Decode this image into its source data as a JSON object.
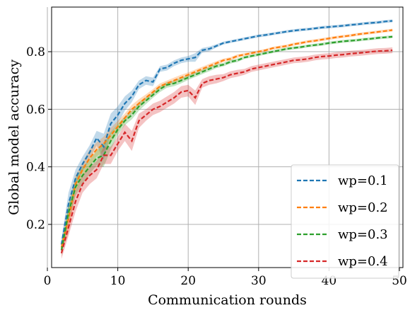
{
  "chart_data": {
    "type": "line",
    "title": "",
    "xlabel": "Communication rounds",
    "ylabel": "Global model accuracy",
    "xlim": [
      0.6,
      50.5
    ],
    "ylim": [
      0.05,
      0.955
    ],
    "xticks": [
      0,
      10,
      20,
      30,
      40,
      50
    ],
    "yticks": [
      0.2,
      0.4,
      0.6,
      0.8
    ],
    "xtick_labels": [
      "0",
      "10",
      "20",
      "30",
      "40",
      "50"
    ],
    "ytick_labels": [
      "0.2",
      "0.4",
      "0.6",
      "0.8"
    ],
    "grid": true,
    "legend_position": "lower-right",
    "line_style": "dashed",
    "band": "shaded spread around each line",
    "x": [
      2,
      3,
      4,
      5,
      6,
      7,
      8,
      9,
      10,
      11,
      12,
      13,
      14,
      15,
      16,
      17,
      18,
      19,
      20,
      21,
      22,
      23,
      24,
      25,
      26,
      27,
      28,
      29,
      30,
      31,
      32,
      33,
      34,
      35,
      36,
      37,
      38,
      39,
      40,
      41,
      42,
      43,
      44,
      45,
      46,
      47,
      48,
      49
    ],
    "series": [
      {
        "name": "wp=0.1",
        "color": "#1f77b4",
        "values": [
          0.13,
          0.27,
          0.36,
          0.41,
          0.45,
          0.5,
          0.47,
          0.55,
          0.58,
          0.62,
          0.645,
          0.685,
          0.7,
          0.695,
          0.74,
          0.745,
          0.76,
          0.77,
          0.775,
          0.78,
          0.805,
          0.81,
          0.82,
          0.83,
          0.835,
          0.84,
          0.845,
          0.85,
          0.855,
          0.858,
          0.862,
          0.866,
          0.87,
          0.873,
          0.876,
          0.878,
          0.881,
          0.884,
          0.886,
          0.888,
          0.89,
          0.893,
          0.895,
          0.898,
          0.9,
          0.902,
          0.905,
          0.907
        ],
        "band": [
          0.02,
          0.04,
          0.03,
          0.025,
          0.025,
          0.025,
          0.045,
          0.035,
          0.03,
          0.025,
          0.02,
          0.015,
          0.015,
          0.015,
          0.01,
          0.01,
          0.01,
          0.01,
          0.01,
          0.015,
          0.008,
          0.008,
          0.006,
          0.005,
          0.005,
          0.005,
          0.005,
          0.005,
          0.005,
          0.005,
          0.005,
          0.005,
          0.005,
          0.005,
          0.005,
          0.005,
          0.005,
          0.005,
          0.005,
          0.005,
          0.005,
          0.005,
          0.005,
          0.005,
          0.005,
          0.005,
          0.005,
          0.005
        ]
      },
      {
        "name": "wp=0.2",
        "color": "#ff7f0e",
        "values": [
          0.12,
          0.22,
          0.34,
          0.39,
          0.43,
          0.46,
          0.48,
          0.51,
          0.54,
          0.57,
          0.6,
          0.62,
          0.64,
          0.66,
          0.68,
          0.69,
          0.7,
          0.71,
          0.72,
          0.73,
          0.74,
          0.75,
          0.76,
          0.77,
          0.775,
          0.785,
          0.79,
          0.795,
          0.8,
          0.805,
          0.812,
          0.816,
          0.82,
          0.826,
          0.83,
          0.835,
          0.838,
          0.842,
          0.846,
          0.85,
          0.853,
          0.856,
          0.86,
          0.863,
          0.866,
          0.869,
          0.872,
          0.875
        ],
        "band": [
          0.02,
          0.05,
          0.03,
          0.025,
          0.03,
          0.025,
          0.025,
          0.025,
          0.02,
          0.015,
          0.015,
          0.015,
          0.012,
          0.01,
          0.01,
          0.01,
          0.01,
          0.01,
          0.008,
          0.008,
          0.008,
          0.008,
          0.007,
          0.006,
          0.006,
          0.006,
          0.005,
          0.005,
          0.005,
          0.005,
          0.005,
          0.005,
          0.005,
          0.005,
          0.005,
          0.005,
          0.005,
          0.005,
          0.005,
          0.005,
          0.005,
          0.005,
          0.005,
          0.005,
          0.005,
          0.005,
          0.005,
          0.005
        ]
      },
      {
        "name": "wp=0.3",
        "color": "#2ca02c",
        "values": [
          0.11,
          0.24,
          0.33,
          0.37,
          0.4,
          0.43,
          0.44,
          0.49,
          0.53,
          0.56,
          0.58,
          0.61,
          0.63,
          0.65,
          0.67,
          0.685,
          0.69,
          0.7,
          0.71,
          0.72,
          0.73,
          0.74,
          0.75,
          0.755,
          0.765,
          0.77,
          0.78,
          0.785,
          0.79,
          0.795,
          0.8,
          0.805,
          0.81,
          0.813,
          0.816,
          0.82,
          0.823,
          0.826,
          0.83,
          0.833,
          0.836,
          0.838,
          0.84,
          0.843,
          0.845,
          0.848,
          0.85,
          0.852
        ],
        "band": [
          0.02,
          0.03,
          0.03,
          0.03,
          0.025,
          0.025,
          0.04,
          0.03,
          0.02,
          0.015,
          0.015,
          0.015,
          0.012,
          0.01,
          0.01,
          0.01,
          0.01,
          0.01,
          0.008,
          0.008,
          0.008,
          0.008,
          0.007,
          0.006,
          0.006,
          0.006,
          0.005,
          0.005,
          0.005,
          0.005,
          0.005,
          0.005,
          0.005,
          0.005,
          0.005,
          0.005,
          0.005,
          0.005,
          0.005,
          0.005,
          0.005,
          0.005,
          0.005,
          0.005,
          0.005,
          0.005,
          0.005,
          0.005
        ]
      },
      {
        "name": "wp=0.4",
        "color": "#d62728",
        "values": [
          0.1,
          0.19,
          0.28,
          0.34,
          0.37,
          0.39,
          0.44,
          0.44,
          0.48,
          0.52,
          0.49,
          0.56,
          0.58,
          0.6,
          0.61,
          0.625,
          0.64,
          0.66,
          0.665,
          0.64,
          0.69,
          0.7,
          0.705,
          0.71,
          0.72,
          0.725,
          0.73,
          0.74,
          0.745,
          0.75,
          0.755,
          0.76,
          0.765,
          0.77,
          0.772,
          0.775,
          0.78,
          0.783,
          0.785,
          0.788,
          0.79,
          0.793,
          0.795,
          0.797,
          0.8,
          0.802,
          0.803,
          0.805
        ],
        "band": [
          0.02,
          0.03,
          0.035,
          0.03,
          0.03,
          0.03,
          0.03,
          0.03,
          0.025,
          0.03,
          0.035,
          0.025,
          0.02,
          0.02,
          0.02,
          0.02,
          0.02,
          0.02,
          0.02,
          0.025,
          0.015,
          0.015,
          0.015,
          0.012,
          0.012,
          0.012,
          0.01,
          0.01,
          0.01,
          0.01,
          0.01,
          0.01,
          0.01,
          0.01,
          0.01,
          0.01,
          0.01,
          0.01,
          0.01,
          0.01,
          0.01,
          0.01,
          0.01,
          0.01,
          0.01,
          0.01,
          0.01,
          0.01
        ]
      }
    ]
  }
}
